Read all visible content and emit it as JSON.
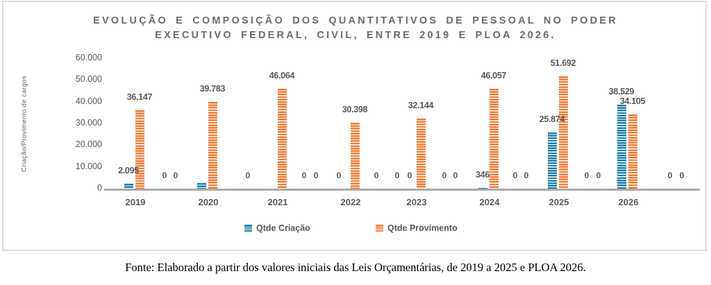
{
  "chart": {
    "title_line1": "EVOLUÇÃO E COMPOSIÇÃO DOS QUANTITATIVOS DE PESSOAL NO PODER",
    "title_line2": "EXECUTIVO FEDERAL, CIVIL, ENTRE 2019 E PLOA 2026.",
    "y_axis_title": "Criação/Provimento de cargos",
    "legend": {
      "criacao_label": "Qtde Criação",
      "provimento_label": "Qtde Provimento"
    },
    "colors": {
      "criacao": "#1E7CA8",
      "provimento": "#EF7B33",
      "text_gray": "#595959",
      "title_gray": "#6B6B6B",
      "axis_line": "#A9A9A9",
      "frame_border": "#DBDBDB"
    }
  },
  "caption": "Fonte: Elaborado a partir dos valores iniciais das Leis Orçamentárias, de 2019 a 2025 e PLOA 2026.",
  "chart_data": {
    "type": "bar",
    "title": "EVOLUÇÃO E COMPOSIÇÃO DOS QUANTITATIVOS DE PESSOAL NO PODER EXECUTIVO FEDERAL, CIVIL, ENTRE 2019 E PLOA 2026.",
    "categories": [
      "2019",
      "2020",
      "2021",
      "2022",
      "2023",
      "2024",
      "2025",
      "2026"
    ],
    "series": [
      {
        "name": "Qtde Criação",
        "color": "#1E7CA8",
        "values": [
          2095,
          2500,
          0,
          0,
          0,
          346,
          25874,
          38529
        ],
        "labels": [
          "2.095",
          "",
          "",
          "",
          "",
          "346",
          "25.874",
          "38.529"
        ]
      },
      {
        "name": "Qtde Provimento",
        "color": "#EF7B33",
        "values": [
          36147,
          39783,
          46064,
          30398,
          32144,
          46057,
          51692,
          34105
        ],
        "labels": [
          "36.147",
          "39.783",
          "46.064",
          "30.398",
          "32.144",
          "46.057",
          "51.692",
          "34.105"
        ]
      }
    ],
    "ylabel": "Criação/Provimento de cargos",
    "xlabel": "",
    "ylim": [
      0,
      60000
    ],
    "y_ticks": [
      "60.000",
      "50.000",
      "40.000",
      "30.000",
      "20.000",
      "10.000",
      "0"
    ],
    "grid": false,
    "legend_position": "bottom",
    "zero_label_text": "0",
    "zero_label_xs": [
      237,
      253,
      357,
      438,
      455,
      488,
      542,
      572,
      590,
      640,
      656,
      742,
      758,
      845,
      862,
      965,
      982
    ],
    "note": "The 2020 Qtde Criação bar is drawn without a data label in the source chart; its value is estimated from bar height."
  }
}
